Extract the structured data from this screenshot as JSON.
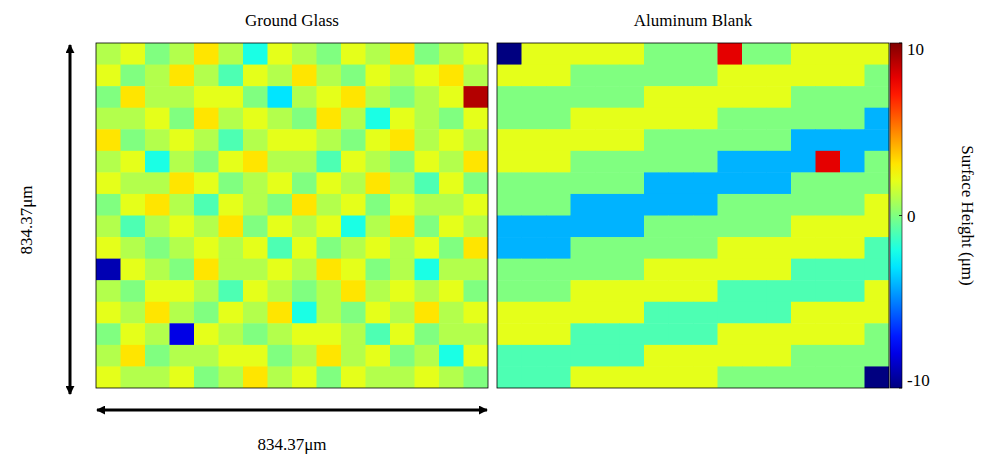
{
  "chart_data": {
    "type": "heatmap",
    "colorbar": {
      "range": [
        -10,
        10
      ],
      "ticks": [
        -10,
        0,
        10
      ],
      "label": "Surface Height (μm)"
    },
    "dimension_labels": {
      "x": "834.37μm",
      "y": "834.37μm"
    },
    "panels": [
      {
        "title": "Ground Glass",
        "cells": [
          [
            1,
            2,
            0,
            1,
            3,
            1,
            -2,
            2,
            1,
            0,
            2,
            1,
            3,
            0,
            1,
            2
          ],
          [
            2,
            0,
            1,
            3,
            1,
            -1,
            2,
            1,
            3,
            1,
            0,
            2,
            1,
            2,
            3,
            1
          ],
          [
            0,
            3,
            1,
            1,
            2,
            2,
            0,
            -3,
            1,
            2,
            3,
            1,
            0,
            1,
            2,
            9
          ],
          [
            1,
            1,
            2,
            0,
            3,
            1,
            2,
            1,
            0,
            3,
            1,
            -2,
            2,
            1,
            0,
            2
          ],
          [
            3,
            0,
            1,
            2,
            1,
            -1,
            1,
            2,
            2,
            1,
            0,
            2,
            3,
            1,
            2,
            1
          ],
          [
            1,
            2,
            -2,
            1,
            0,
            2,
            3,
            1,
            1,
            -1,
            2,
            1,
            0,
            2,
            1,
            3
          ],
          [
            2,
            1,
            1,
            3,
            2,
            0,
            1,
            2,
            0,
            2,
            1,
            3,
            1,
            -1,
            2,
            0
          ],
          [
            0,
            2,
            3,
            1,
            -1,
            2,
            1,
            0,
            3,
            1,
            2,
            0,
            2,
            1,
            1,
            2
          ],
          [
            1,
            -1,
            1,
            2,
            1,
            3,
            0,
            2,
            1,
            2,
            -2,
            1,
            3,
            0,
            2,
            1
          ],
          [
            2,
            1,
            0,
            1,
            2,
            1,
            2,
            -1,
            2,
            0,
            1,
            2,
            1,
            2,
            0,
            3
          ],
          [
            -9,
            2,
            1,
            0,
            3,
            1,
            1,
            2,
            1,
            3,
            2,
            0,
            1,
            -2,
            1,
            1
          ],
          [
            1,
            0,
            2,
            2,
            1,
            -1,
            2,
            1,
            0,
            1,
            3,
            1,
            2,
            1,
            2,
            0
          ],
          [
            2,
            1,
            3,
            1,
            0,
            2,
            1,
            3,
            -2,
            1,
            0,
            2,
            1,
            3,
            1,
            2
          ],
          [
            0,
            2,
            1,
            -8,
            2,
            1,
            0,
            1,
            2,
            2,
            1,
            -1,
            2,
            0,
            1,
            1
          ],
          [
            1,
            3,
            0,
            1,
            1,
            2,
            2,
            0,
            1,
            3,
            1,
            2,
            0,
            1,
            -2,
            2
          ],
          [
            2,
            1,
            1,
            2,
            0,
            1,
            3,
            1,
            2,
            0,
            2,
            1,
            1,
            2,
            1,
            0
          ]
        ]
      },
      {
        "title": "Aluminum Blank",
        "cells": [
          [
            -10,
            2,
            2,
            2,
            2,
            2,
            0,
            0,
            0,
            8,
            0,
            0,
            2,
            2,
            2,
            2
          ],
          [
            2,
            2,
            2,
            0,
            0,
            0,
            0,
            0,
            0,
            2,
            2,
            2,
            2,
            2,
            2,
            0
          ],
          [
            0,
            0,
            0,
            0,
            0,
            0,
            2,
            2,
            2,
            2,
            2,
            2,
            0,
            0,
            0,
            0
          ],
          [
            0,
            0,
            0,
            2,
            2,
            2,
            2,
            2,
            2,
            0,
            0,
            0,
            0,
            0,
            0,
            -4
          ],
          [
            2,
            2,
            2,
            2,
            2,
            2,
            0,
            0,
            0,
            0,
            0,
            0,
            -4,
            -4,
            -4,
            -4
          ],
          [
            2,
            2,
            2,
            0,
            0,
            0,
            0,
            0,
            0,
            -4,
            -4,
            -4,
            -4,
            8,
            -4,
            0
          ],
          [
            0,
            0,
            0,
            0,
            0,
            0,
            -4,
            -4,
            -4,
            -4,
            -4,
            -4,
            0,
            0,
            0,
            0
          ],
          [
            0,
            0,
            0,
            -4,
            -4,
            -4,
            -4,
            -4,
            -4,
            0,
            0,
            0,
            0,
            0,
            0,
            2
          ],
          [
            -4,
            -4,
            -4,
            -4,
            -4,
            -4,
            0,
            0,
            0,
            0,
            0,
            0,
            2,
            2,
            2,
            2
          ],
          [
            -4,
            -4,
            -4,
            0,
            0,
            0,
            0,
            0,
            0,
            2,
            2,
            2,
            2,
            2,
            2,
            -1
          ],
          [
            0,
            0,
            0,
            0,
            0,
            0,
            2,
            2,
            2,
            2,
            2,
            2,
            -1,
            -1,
            -1,
            -1
          ],
          [
            0,
            0,
            0,
            2,
            2,
            2,
            2,
            2,
            2,
            -1,
            -1,
            -1,
            -1,
            -1,
            -1,
            2
          ],
          [
            2,
            2,
            2,
            2,
            2,
            2,
            -1,
            -1,
            -1,
            -1,
            -1,
            -1,
            2,
            2,
            2,
            2
          ],
          [
            2,
            2,
            2,
            -1,
            -1,
            -1,
            -1,
            -1,
            -1,
            2,
            2,
            2,
            2,
            2,
            2,
            0
          ],
          [
            -1,
            -1,
            -1,
            -1,
            -1,
            -1,
            2,
            2,
            2,
            2,
            2,
            2,
            0,
            0,
            0,
            0
          ],
          [
            -1,
            -1,
            -1,
            2,
            2,
            2,
            2,
            2,
            2,
            0,
            0,
            0,
            0,
            0,
            0,
            -10
          ]
        ]
      }
    ]
  }
}
